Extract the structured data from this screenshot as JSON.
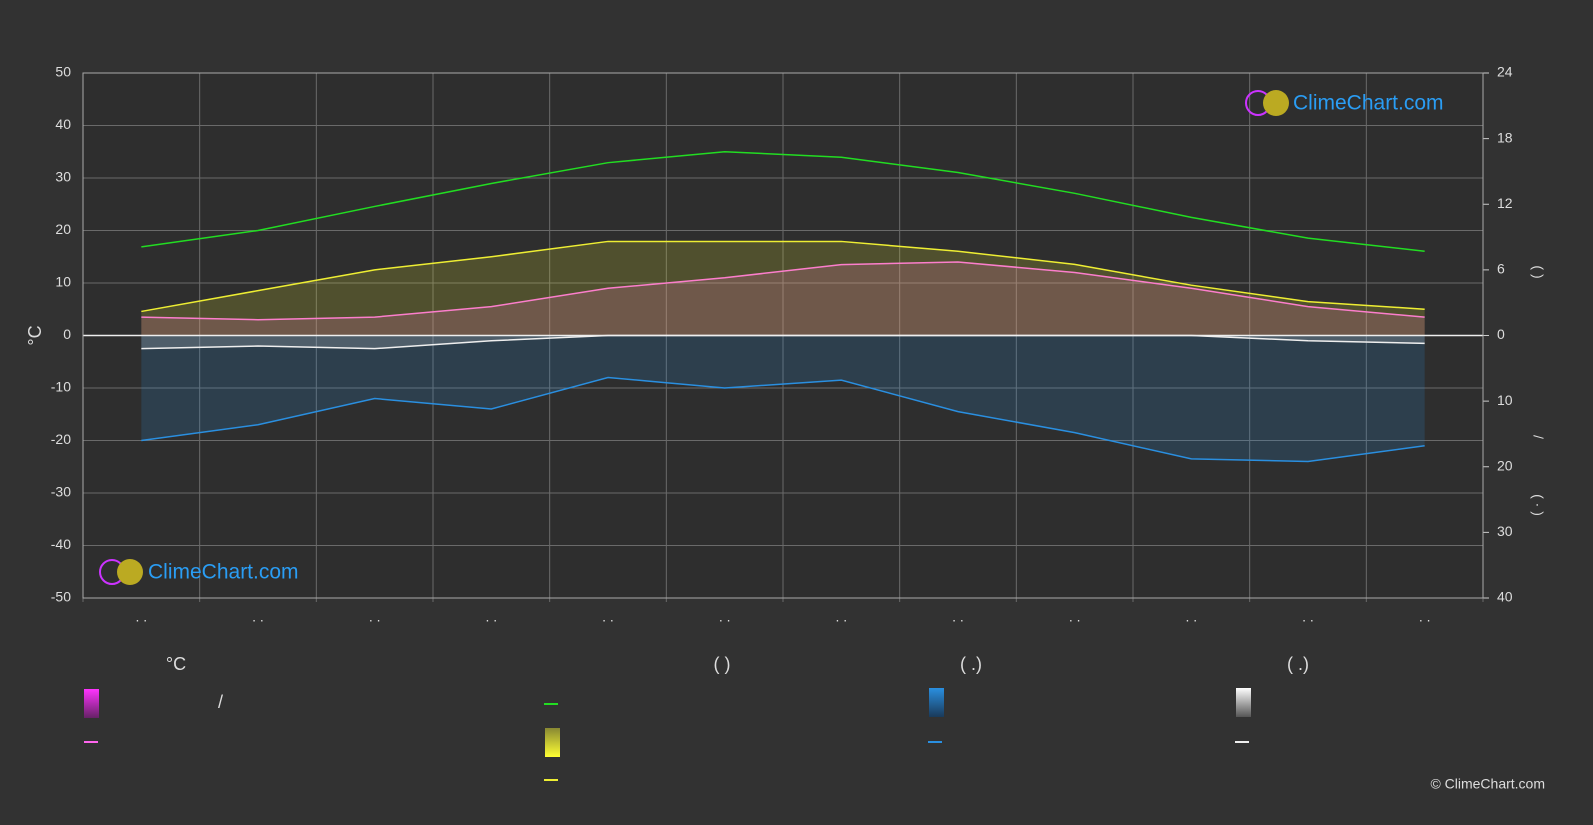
{
  "chart_data": {
    "type": "line",
    "y_label": "°C",
    "y2_label": "(          )",
    "y3_label_a": "/",
    "y3_label_b": "(  ·  )",
    "categories": [
      ". .",
      ". .",
      ". .",
      ". .",
      ". .",
      ". .",
      ". .",
      ". .",
      ". .",
      ". .",
      ". .",
      ". ."
    ],
    "ylim": [
      -50,
      50
    ],
    "yticks": [
      -50,
      -40,
      -30,
      -20,
      -10,
      0,
      10,
      20,
      30,
      40,
      50
    ],
    "y2lim": [
      0,
      24
    ],
    "y2ticks": [
      0,
      6,
      12,
      18,
      24
    ],
    "y3lim": [
      0,
      40
    ],
    "y3ticks": [
      10,
      20,
      30,
      40
    ],
    "grid": true,
    "series": [
      {
        "color": "#ff66ee",
        "axis": "y",
        "values": [
          3.5,
          3,
          3.5,
          5.5,
          9,
          11,
          13.5,
          14,
          12,
          9,
          5.5,
          3.5
        ]
      },
      {
        "color": "#22dd22",
        "axis": "y2",
        "values": [
          8.1,
          9.6,
          11.8,
          13.9,
          15.8,
          16.8,
          16.3,
          14.9,
          13.0,
          10.8,
          8.9,
          7.7
        ]
      },
      {
        "color": "#eeee33",
        "axis": "y2",
        "values": [
          2.2,
          4.1,
          6.0,
          7.2,
          8.6,
          8.6,
          8.6,
          7.7,
          6.5,
          4.6,
          3.1,
          2.4
        ]
      },
      {
        "color": "#2a8fe0",
        "axis": "y3",
        "values": [
          16,
          13.6,
          9.6,
          11.2,
          6.4,
          8,
          6.8,
          11.6,
          14.8,
          18.8,
          19.2,
          16.8
        ]
      },
      {
        "color": "#eeeeee",
        "axis": "y3",
        "values": [
          2,
          1.6,
          2,
          0.8,
          0,
          0,
          0,
          0,
          0,
          0,
          0.8,
          1.2
        ]
      }
    ],
    "legend": {
      "headers": [
        "°C",
        "(          )",
        "(   .)",
        "(   .)"
      ],
      "fragment": "/"
    }
  },
  "watermarks": [
    "ClimeChart.com",
    "ClimeChart.com"
  ],
  "copyright": "© ClimeChart.com"
}
